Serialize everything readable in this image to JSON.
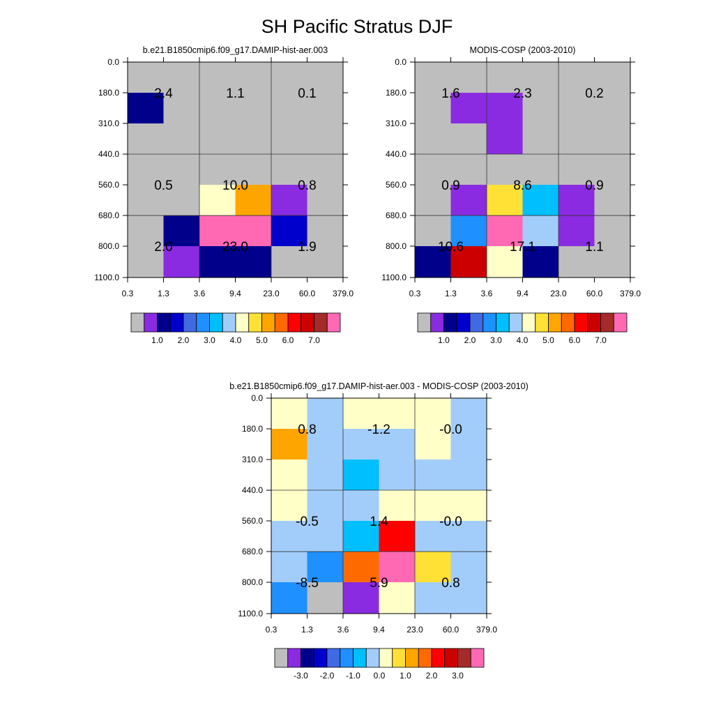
{
  "title": "SH Pacific Stratus DJF",
  "colorbar_colors": [
    "#bebebe",
    "#8a2be2",
    "#00008b",
    "#0000cd",
    "#4169e1",
    "#1e90ff",
    "#00bfff",
    "#a2cdfa",
    "#ffffc8",
    "#ffe135",
    "#ffa500",
    "#ff6a00",
    "#ff0000",
    "#cd0000",
    "#a52a2a",
    "#ff69b4"
  ],
  "chart_data": [
    {
      "type": "heatmap",
      "title": "b.e21.B1850cmip6.f09_g17.DAMIP-hist-aer.003",
      "x_tick_labels": [
        "0.3",
        "1.3",
        "3.6",
        "9.4",
        "23.0",
        "60.0",
        "379.0"
      ],
      "y_tick_labels": [
        "0.0",
        "180.0",
        "310.0",
        "440.0",
        "560.0",
        "680.0",
        "800.0",
        "1100.0"
      ],
      "cell_colors": [
        [
          0,
          0,
          0,
          0,
          0,
          0
        ],
        [
          2,
          0,
          0,
          0,
          0,
          0
        ],
        [
          0,
          0,
          0,
          0,
          0,
          0
        ],
        [
          0,
          0,
          0,
          0,
          0,
          0
        ],
        [
          0,
          0,
          8,
          10,
          1,
          0
        ],
        [
          0,
          2,
          15,
          15,
          3,
          0
        ],
        [
          0,
          1,
          2,
          2,
          0,
          0
        ]
      ],
      "box_labels": [
        [
          "2.4",
          "1.1",
          "0.1"
        ],
        [
          "0.5",
          "10.0",
          "0.8"
        ],
        [
          "2.0",
          "23.0",
          "1.9"
        ]
      ],
      "colorbar_labels": [
        "1.0",
        "2.0",
        "3.0",
        "4.0",
        "5.0",
        "6.0",
        "7.0"
      ]
    },
    {
      "type": "heatmap",
      "title": "MODIS-COSP (2003-2010)",
      "x_tick_labels": [
        "0.3",
        "1.3",
        "3.6",
        "9.4",
        "23.0",
        "60.0",
        "379.0"
      ],
      "y_tick_labels": [
        "0.0",
        "180.0",
        "310.0",
        "440.0",
        "560.0",
        "680.0",
        "800.0",
        "1100.0"
      ],
      "cell_colors": [
        [
          0,
          0,
          0,
          0,
          0,
          0
        ],
        [
          0,
          1,
          1,
          0,
          0,
          0
        ],
        [
          0,
          0,
          1,
          0,
          0,
          0
        ],
        [
          0,
          0,
          0,
          0,
          0,
          0
        ],
        [
          0,
          1,
          9,
          6,
          1,
          0
        ],
        [
          0,
          5,
          15,
          7,
          1,
          0
        ],
        [
          2,
          13,
          8,
          2,
          0,
          0
        ]
      ],
      "box_labels": [
        [
          "1.6",
          "2.3",
          "0.2"
        ],
        [
          "0.9",
          "8.6",
          "0.9"
        ],
        [
          "10.6",
          "17.1",
          "1.1"
        ]
      ],
      "colorbar_labels": [
        "1.0",
        "2.0",
        "3.0",
        "4.0",
        "5.0",
        "6.0",
        "7.0"
      ]
    },
    {
      "type": "heatmap",
      "title": "b.e21.B1850cmip6.f09_g17.DAMIP-hist-aer.003 - MODIS-COSP (2003-2010)",
      "x_tick_labels": [
        "0.3",
        "1.3",
        "3.6",
        "9.4",
        "23.0",
        "60.0",
        "379.0"
      ],
      "y_tick_labels": [
        "0.0",
        "180.0",
        "310.0",
        "440.0",
        "560.0",
        "680.0",
        "800.0",
        "1100.0"
      ],
      "cell_colors": [
        [
          8,
          7,
          8,
          8,
          8,
          7
        ],
        [
          10,
          7,
          7,
          7,
          8,
          7
        ],
        [
          8,
          7,
          6,
          7,
          7,
          7
        ],
        [
          8,
          7,
          7,
          8,
          8,
          8
        ],
        [
          7,
          7,
          6,
          12,
          7,
          7
        ],
        [
          7,
          5,
          11,
          15,
          9,
          7
        ],
        [
          5,
          0,
          1,
          8,
          7,
          7
        ]
      ],
      "box_labels": [
        [
          "0.8",
          "-1.2",
          "-0.0"
        ],
        [
          "-0.5",
          "1.4",
          "-0.0"
        ],
        [
          "-8.5",
          "5.9",
          "0.8"
        ]
      ],
      "colorbar_labels": [
        "-3.0",
        "-2.0",
        "-1.0",
        "0.0",
        "1.0",
        "2.0",
        "3.0"
      ]
    }
  ]
}
